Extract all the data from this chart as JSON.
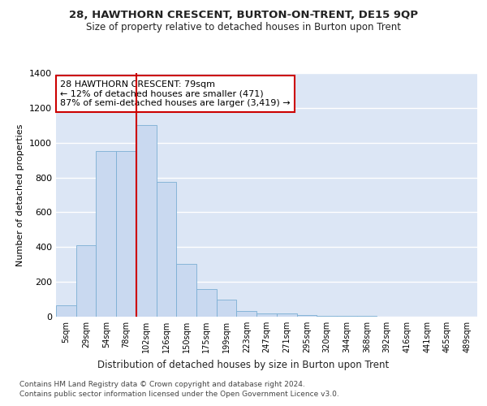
{
  "title": "28, HAWTHORN CRESCENT, BURTON-ON-TRENT, DE15 9QP",
  "subtitle": "Size of property relative to detached houses in Burton upon Trent",
  "xlabel": "Distribution of detached houses by size in Burton upon Trent",
  "ylabel": "Number of detached properties",
  "categories": [
    "5sqm",
    "29sqm",
    "54sqm",
    "78sqm",
    "102sqm",
    "126sqm",
    "150sqm",
    "175sqm",
    "199sqm",
    "223sqm",
    "247sqm",
    "271sqm",
    "295sqm",
    "320sqm",
    "344sqm",
    "368sqm",
    "392sqm",
    "416sqm",
    "441sqm",
    "465sqm",
    "489sqm"
  ],
  "values": [
    65,
    410,
    950,
    950,
    1100,
    775,
    305,
    160,
    100,
    35,
    17,
    17,
    10,
    5,
    3,
    3,
    2,
    2,
    1,
    2,
    1
  ],
  "bar_color": "#c9d9f0",
  "bar_edge_color": "#7bafd4",
  "red_line_index": 3,
  "annotation_text": "28 HAWTHORN CRESCENT: 79sqm\n← 12% of detached houses are smaller (471)\n87% of semi-detached houses are larger (3,419) →",
  "annotation_box_color": "#ffffff",
  "annotation_box_edge": "#cc0000",
  "ylim": [
    0,
    1400
  ],
  "yticks": [
    0,
    200,
    400,
    600,
    800,
    1000,
    1200,
    1400
  ],
  "plot_bg_color": "#dce6f5",
  "figure_bg_color": "#ffffff",
  "grid_color": "#ffffff",
  "footer_line1": "Contains HM Land Registry data © Crown copyright and database right 2024.",
  "footer_line2": "Contains public sector information licensed under the Open Government Licence v3.0."
}
